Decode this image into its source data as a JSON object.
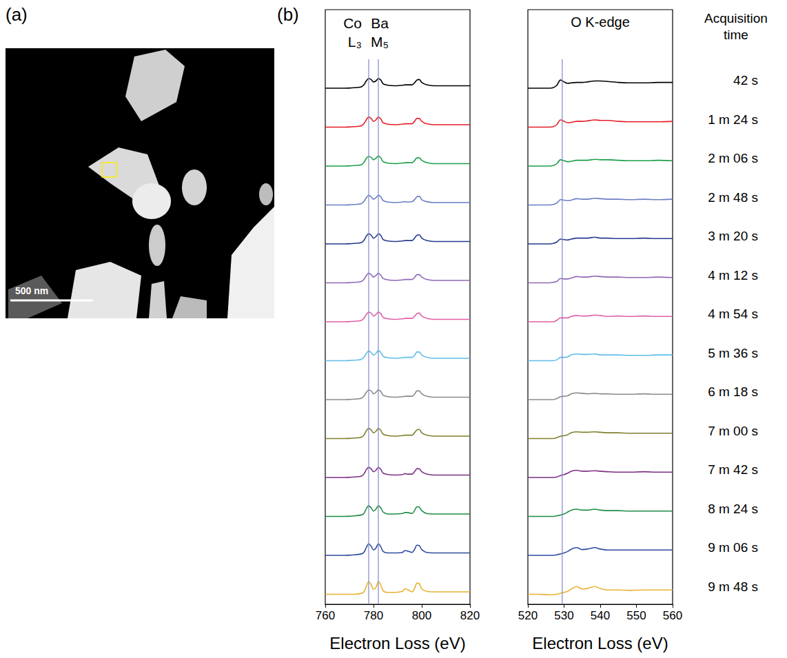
{
  "labels": {
    "a": "(a)",
    "b": "(b)"
  },
  "image": {
    "scale_bar": "500 nm"
  },
  "times_title": "Acquisition time",
  "times": [
    "42 s",
    "1 m 24 s",
    "2 m 06 s",
    "2 m 48 s",
    "3 m 20 s",
    "4 m 12 s",
    "4 m 54 s",
    "5 m 36 s",
    "6 m 18 s",
    "7 m 00 s",
    "7 m 42 s",
    "8 m 24 s",
    "9 m 06 s",
    "9 m 48 s"
  ],
  "chart_data": [
    {
      "type": "line",
      "x_label": "Electron Loss (eV)",
      "xlim": [
        760,
        820
      ],
      "xticks": [
        760,
        780,
        800,
        820
      ],
      "ylim": [
        0,
        1
      ],
      "tick_labels": "x",
      "grid": false,
      "vlines": [
        {
          "x": 778,
          "label": "Co L₃"
        },
        {
          "x": 782,
          "label": "Ba M₅"
        }
      ],
      "x": [
        760,
        764,
        768,
        772,
        775,
        776,
        777,
        778,
        779,
        780,
        781,
        782,
        783,
        784,
        786,
        789,
        792,
        793,
        794,
        796,
        797,
        798,
        799,
        800,
        802,
        805,
        810,
        815,
        820
      ],
      "series": [
        {
          "color": "#000000",
          "values": [
            0.1,
            0.1,
            0.1,
            0.11,
            0.13,
            0.17,
            0.25,
            0.3,
            0.28,
            0.23,
            0.25,
            0.3,
            0.27,
            0.19,
            0.16,
            0.15,
            0.16,
            0.17,
            0.17,
            0.17,
            0.21,
            0.27,
            0.28,
            0.22,
            0.17,
            0.15,
            0.15,
            0.15,
            0.15
          ]
        },
        {
          "color": "#e41e26",
          "values": [
            0.1,
            0.1,
            0.1,
            0.11,
            0.13,
            0.17,
            0.25,
            0.31,
            0.28,
            0.22,
            0.25,
            0.31,
            0.27,
            0.19,
            0.16,
            0.15,
            0.16,
            0.17,
            0.17,
            0.17,
            0.22,
            0.28,
            0.28,
            0.22,
            0.17,
            0.15,
            0.15,
            0.15,
            0.15
          ]
        },
        {
          "color": "#1b9e49",
          "values": [
            0.1,
            0.1,
            0.1,
            0.11,
            0.13,
            0.17,
            0.26,
            0.3,
            0.28,
            0.23,
            0.26,
            0.31,
            0.27,
            0.19,
            0.16,
            0.15,
            0.16,
            0.17,
            0.17,
            0.17,
            0.21,
            0.27,
            0.27,
            0.22,
            0.17,
            0.15,
            0.15,
            0.15,
            0.15
          ]
        },
        {
          "color": "#6a7ec4",
          "values": [
            0.1,
            0.1,
            0.1,
            0.11,
            0.13,
            0.17,
            0.25,
            0.3,
            0.27,
            0.22,
            0.25,
            0.3,
            0.27,
            0.19,
            0.16,
            0.15,
            0.16,
            0.17,
            0.16,
            0.17,
            0.21,
            0.27,
            0.28,
            0.21,
            0.17,
            0.15,
            0.15,
            0.15,
            0.15
          ]
        },
        {
          "color": "#253a8e",
          "values": [
            0.1,
            0.1,
            0.1,
            0.11,
            0.13,
            0.17,
            0.26,
            0.31,
            0.28,
            0.22,
            0.25,
            0.31,
            0.28,
            0.19,
            0.16,
            0.15,
            0.16,
            0.17,
            0.17,
            0.17,
            0.22,
            0.28,
            0.29,
            0.22,
            0.17,
            0.15,
            0.15,
            0.15,
            0.15
          ]
        },
        {
          "color": "#8e67b4",
          "values": [
            0.1,
            0.1,
            0.1,
            0.11,
            0.13,
            0.17,
            0.25,
            0.3,
            0.27,
            0.22,
            0.25,
            0.3,
            0.26,
            0.19,
            0.16,
            0.15,
            0.16,
            0.17,
            0.17,
            0.17,
            0.21,
            0.27,
            0.27,
            0.22,
            0.17,
            0.15,
            0.15,
            0.15,
            0.15
          ]
        },
        {
          "color": "#e060a8",
          "values": [
            0.1,
            0.1,
            0.1,
            0.11,
            0.13,
            0.17,
            0.25,
            0.3,
            0.28,
            0.22,
            0.25,
            0.3,
            0.27,
            0.19,
            0.16,
            0.15,
            0.16,
            0.17,
            0.17,
            0.17,
            0.21,
            0.27,
            0.28,
            0.22,
            0.17,
            0.15,
            0.15,
            0.15,
            0.15
          ]
        },
        {
          "color": "#5fbde6",
          "values": [
            0.1,
            0.1,
            0.1,
            0.11,
            0.13,
            0.17,
            0.25,
            0.3,
            0.27,
            0.22,
            0.25,
            0.31,
            0.27,
            0.19,
            0.16,
            0.15,
            0.16,
            0.17,
            0.17,
            0.17,
            0.21,
            0.28,
            0.28,
            0.22,
            0.17,
            0.15,
            0.15,
            0.15,
            0.15
          ]
        },
        {
          "color": "#8a8a8a",
          "values": [
            0.1,
            0.1,
            0.1,
            0.11,
            0.13,
            0.17,
            0.25,
            0.3,
            0.28,
            0.22,
            0.25,
            0.3,
            0.27,
            0.19,
            0.16,
            0.15,
            0.16,
            0.17,
            0.17,
            0.17,
            0.21,
            0.28,
            0.28,
            0.22,
            0.17,
            0.15,
            0.15,
            0.15,
            0.15
          ]
        },
        {
          "color": "#7f7f2e",
          "values": [
            0.1,
            0.1,
            0.1,
            0.11,
            0.13,
            0.17,
            0.26,
            0.31,
            0.28,
            0.22,
            0.25,
            0.31,
            0.27,
            0.19,
            0.16,
            0.15,
            0.16,
            0.17,
            0.17,
            0.17,
            0.22,
            0.28,
            0.29,
            0.22,
            0.17,
            0.15,
            0.15,
            0.15,
            0.15
          ]
        },
        {
          "color": "#7d2f86",
          "values": [
            0.1,
            0.1,
            0.1,
            0.11,
            0.13,
            0.17,
            0.26,
            0.31,
            0.28,
            0.22,
            0.25,
            0.31,
            0.27,
            0.19,
            0.16,
            0.15,
            0.16,
            0.18,
            0.17,
            0.17,
            0.22,
            0.28,
            0.28,
            0.22,
            0.17,
            0.15,
            0.15,
            0.15,
            0.15
          ]
        },
        {
          "color": "#1e8c45",
          "values": [
            0.1,
            0.1,
            0.1,
            0.11,
            0.13,
            0.16,
            0.26,
            0.32,
            0.28,
            0.21,
            0.25,
            0.32,
            0.28,
            0.19,
            0.15,
            0.15,
            0.16,
            0.18,
            0.18,
            0.16,
            0.22,
            0.3,
            0.29,
            0.22,
            0.16,
            0.15,
            0.15,
            0.15,
            0.15
          ]
        },
        {
          "color": "#2f4ba0",
          "values": [
            0.1,
            0.1,
            0.1,
            0.11,
            0.13,
            0.16,
            0.26,
            0.34,
            0.29,
            0.21,
            0.25,
            0.34,
            0.28,
            0.18,
            0.15,
            0.15,
            0.16,
            0.2,
            0.19,
            0.16,
            0.22,
            0.31,
            0.3,
            0.22,
            0.16,
            0.15,
            0.15,
            0.15,
            0.15
          ]
        },
        {
          "color": "#e8b230",
          "values": [
            0.1,
            0.1,
            0.1,
            0.1,
            0.12,
            0.15,
            0.26,
            0.36,
            0.3,
            0.2,
            0.24,
            0.36,
            0.3,
            0.17,
            0.14,
            0.14,
            0.16,
            0.21,
            0.2,
            0.15,
            0.22,
            0.33,
            0.32,
            0.21,
            0.16,
            0.15,
            0.15,
            0.15,
            0.15
          ]
        }
      ]
    },
    {
      "type": "line",
      "title": "O K-edge",
      "x_label": "Electron Loss (eV)",
      "xlim": [
        520,
        560
      ],
      "xticks": [
        520,
        530,
        540,
        550,
        560
      ],
      "ylim": [
        0,
        1
      ],
      "tick_labels": "x",
      "grid": false,
      "vlines": [
        {
          "x": 529.5
        }
      ],
      "x": [
        520,
        523,
        526,
        527,
        528,
        529,
        530,
        531,
        532,
        533.5,
        535,
        536.5,
        538.5,
        540,
        542,
        545,
        548,
        552,
        556,
        560
      ],
      "series": [
        {
          "color": "#000000",
          "values": [
            0.1,
            0.1,
            0.1,
            0.11,
            0.16,
            0.27,
            0.23,
            0.2,
            0.21,
            0.22,
            0.22,
            0.23,
            0.25,
            0.25,
            0.24,
            0.22,
            0.21,
            0.21,
            0.22,
            0.22
          ]
        },
        {
          "color": "#e41e26",
          "values": [
            0.1,
            0.1,
            0.1,
            0.11,
            0.15,
            0.25,
            0.22,
            0.19,
            0.2,
            0.22,
            0.22,
            0.23,
            0.25,
            0.24,
            0.24,
            0.22,
            0.21,
            0.21,
            0.21,
            0.22
          ]
        },
        {
          "color": "#1b9e49",
          "values": [
            0.1,
            0.1,
            0.1,
            0.11,
            0.15,
            0.23,
            0.21,
            0.19,
            0.2,
            0.22,
            0.22,
            0.22,
            0.24,
            0.23,
            0.23,
            0.22,
            0.21,
            0.21,
            0.22,
            0.21
          ]
        },
        {
          "color": "#6a7ec4",
          "values": [
            0.1,
            0.1,
            0.1,
            0.11,
            0.14,
            0.21,
            0.2,
            0.19,
            0.2,
            0.23,
            0.22,
            0.22,
            0.24,
            0.23,
            0.22,
            0.22,
            0.21,
            0.22,
            0.21,
            0.22
          ]
        },
        {
          "color": "#253a8e",
          "values": [
            0.1,
            0.1,
            0.1,
            0.11,
            0.14,
            0.2,
            0.19,
            0.18,
            0.2,
            0.22,
            0.22,
            0.22,
            0.24,
            0.22,
            0.22,
            0.21,
            0.21,
            0.22,
            0.21,
            0.21
          ]
        },
        {
          "color": "#8e67b4",
          "values": [
            0.1,
            0.1,
            0.1,
            0.11,
            0.13,
            0.19,
            0.18,
            0.18,
            0.2,
            0.23,
            0.22,
            0.22,
            0.24,
            0.23,
            0.22,
            0.22,
            0.21,
            0.21,
            0.22,
            0.21
          ]
        },
        {
          "color": "#e060a8",
          "values": [
            0.1,
            0.1,
            0.1,
            0.1,
            0.13,
            0.18,
            0.18,
            0.18,
            0.21,
            0.23,
            0.22,
            0.22,
            0.24,
            0.23,
            0.21,
            0.22,
            0.21,
            0.22,
            0.21,
            0.21
          ]
        },
        {
          "color": "#5fbde6",
          "values": [
            0.1,
            0.1,
            0.1,
            0.1,
            0.12,
            0.17,
            0.17,
            0.18,
            0.22,
            0.24,
            0.23,
            0.23,
            0.24,
            0.22,
            0.22,
            0.22,
            0.21,
            0.21,
            0.22,
            0.22
          ]
        },
        {
          "color": "#8a8a8a",
          "values": [
            0.1,
            0.1,
            0.1,
            0.1,
            0.12,
            0.16,
            0.17,
            0.18,
            0.22,
            0.24,
            0.23,
            0.22,
            0.23,
            0.22,
            0.22,
            0.21,
            0.21,
            0.22,
            0.21,
            0.21
          ]
        },
        {
          "color": "#7f7f2e",
          "values": [
            0.1,
            0.1,
            0.1,
            0.1,
            0.12,
            0.15,
            0.16,
            0.18,
            0.22,
            0.24,
            0.23,
            0.23,
            0.24,
            0.23,
            0.22,
            0.22,
            0.21,
            0.21,
            0.21,
            0.21
          ]
        },
        {
          "color": "#7d2f86",
          "values": [
            0.1,
            0.1,
            0.1,
            0.1,
            0.11,
            0.14,
            0.16,
            0.19,
            0.23,
            0.25,
            0.23,
            0.23,
            0.24,
            0.23,
            0.22,
            0.21,
            0.21,
            0.22,
            0.21,
            0.21
          ]
        },
        {
          "color": "#1e8c45",
          "values": [
            0.1,
            0.1,
            0.1,
            0.1,
            0.11,
            0.13,
            0.15,
            0.19,
            0.23,
            0.25,
            0.23,
            0.23,
            0.25,
            0.23,
            0.22,
            0.22,
            0.21,
            0.21,
            0.21,
            0.21
          ]
        },
        {
          "color": "#2f4ba0",
          "values": [
            0.1,
            0.1,
            0.1,
            0.1,
            0.11,
            0.13,
            0.15,
            0.18,
            0.23,
            0.26,
            0.22,
            0.23,
            0.26,
            0.23,
            0.21,
            0.21,
            0.21,
            0.21,
            0.21,
            0.21
          ]
        },
        {
          "color": "#e8b230",
          "values": [
            0.1,
            0.1,
            0.09,
            0.09,
            0.1,
            0.12,
            0.14,
            0.16,
            0.21,
            0.26,
            0.21,
            0.22,
            0.26,
            0.22,
            0.19,
            0.19,
            0.18,
            0.19,
            0.19,
            0.19
          ]
        }
      ]
    }
  ]
}
